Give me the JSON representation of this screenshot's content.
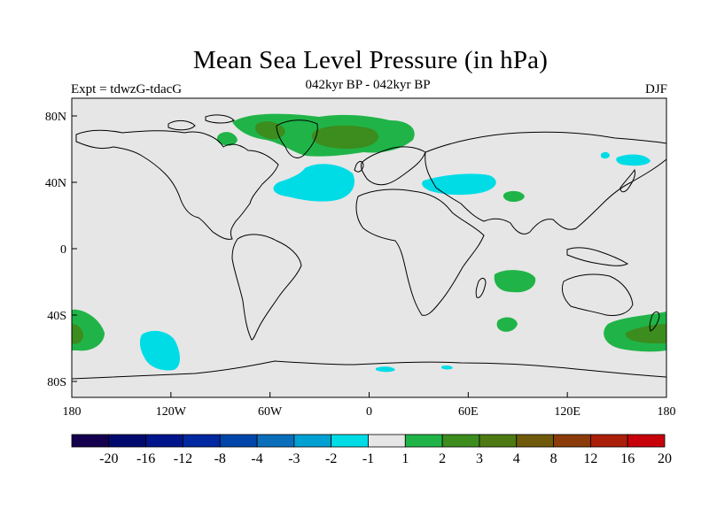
{
  "title": "Mean Sea Level Pressure (in hPa)",
  "subtitle": "042kyr BP - 042kyr BP",
  "experiment": "Expt = tdwzG-tdacG",
  "season": "DJF",
  "colors": {
    "ocean": "#e6e6e6",
    "coast": "#000000",
    "neg1": "#00dce6",
    "pos1": "#20b448",
    "pos2": "#3c8c1e",
    "pos3": "#5a6e14"
  },
  "axes": {
    "lat_labels": [
      "80N",
      "40N",
      "0",
      "40S",
      "80S"
    ],
    "lon_labels": [
      "180",
      "120W",
      "60W",
      "0",
      "60E",
      "120E",
      "180"
    ]
  },
  "colorbar": {
    "labels": [
      "-20",
      "-16",
      "-12",
      "-8",
      "-4",
      "-3",
      "-2",
      "-1",
      "1",
      "2",
      "3",
      "4",
      "8",
      "12",
      "16",
      "20"
    ],
    "colors": [
      "#14004e",
      "#000a6e",
      "#00148c",
      "#0028a0",
      "#0046aa",
      "#0a6eba",
      "#00a0d2",
      "#00dce6",
      "#e6e6e6",
      "#20b448",
      "#3c8c1e",
      "#4e7a14",
      "#6e5a0a",
      "#8c3c0a",
      "#aa1e0a",
      "#c8000a"
    ]
  }
}
